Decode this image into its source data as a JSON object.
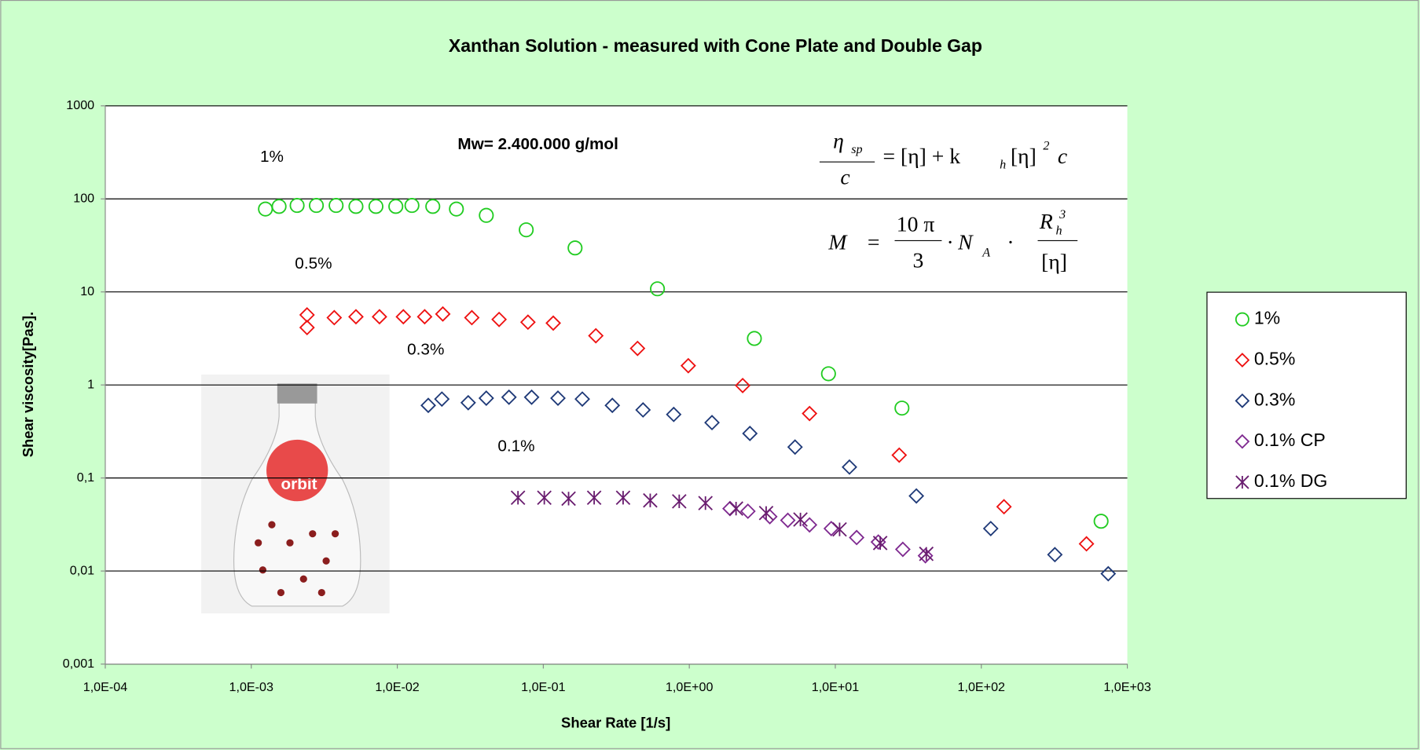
{
  "chart_data": {
    "type": "scatter",
    "title": "Xanthan Solution - measured with Cone Plate and Double Gap",
    "x_label": "Shear Rate [1/s]",
    "y_label": "Shear viscosity[Pas].",
    "xscale": "log",
    "yscale": "log",
    "grid": true,
    "legend": "right",
    "xlim": [
      0.0001,
      1000
    ],
    "ylim": [
      0.001,
      1000
    ],
    "xticks": [
      {
        "value": 0.0001,
        "label": "1,0E-04"
      },
      {
        "value": 0.001,
        "label": "1,0E-03"
      },
      {
        "value": 0.01,
        "label": "1,0E-02"
      },
      {
        "value": 0.1,
        "label": "1,0E-01"
      },
      {
        "value": 1,
        "label": "1,0E+00"
      },
      {
        "value": 10,
        "label": "1,0E+01"
      },
      {
        "value": 100,
        "label": "1,0E+02"
      },
      {
        "value": 1000,
        "label": "1,0E+03"
      }
    ],
    "yticks": [
      {
        "value": 0.001,
        "label": "0,001"
      },
      {
        "value": 0.01,
        "label": "0,01"
      },
      {
        "value": 0.1,
        "label": "0,1"
      },
      1,
      10,
      100,
      1000
    ],
    "annotations": [
      "1%",
      "0.5%",
      "0.3%",
      "0.1%",
      "Mw= 2.400.000 g/mol"
    ],
    "formulas": [
      [
        "η",
        "sp",
        "c",
        "= [η] + k",
        "h",
        "[η]",
        "2",
        "c"
      ],
      [
        "M",
        "=",
        "10 π",
        "3",
        "· N",
        "A",
        "·",
        "R",
        "h",
        "3",
        "[η]"
      ]
    ],
    "image_label": "orbit",
    "series": [
      {
        "name": "1%",
        "color": "#22cc22",
        "marker": "circle",
        "x": [
          0.00125,
          0.00155,
          0.00206,
          0.00279,
          0.00381,
          0.00521,
          0.00714,
          0.00977,
          0.0126,
          0.0175,
          0.0254,
          0.0407,
          0.0764,
          0.165,
          0.605,
          2.79,
          8.98,
          28.6,
          661
        ],
        "values": [
          77.8,
          83,
          85,
          85,
          85,
          83,
          83,
          83,
          85,
          83,
          77.8,
          66.5,
          46.5,
          29.7,
          10.8,
          3.16,
          1.32,
          0.564,
          0.0343
        ]
      },
      {
        "name": "0.5%",
        "color": "#ee1111",
        "marker": "diamond",
        "x": [
          0.00241,
          0.00241,
          0.0037,
          0.00521,
          0.00755,
          0.011,
          0.0154,
          0.0205,
          0.0324,
          0.0498,
          0.0785,
          0.117,
          0.229,
          0.442,
          0.984,
          2.32,
          6.66,
          27.4,
          143,
          525
        ],
        "values": [
          4.14,
          5.66,
          5.29,
          5.41,
          5.41,
          5.41,
          5.41,
          5.79,
          5.29,
          5.06,
          4.73,
          4.62,
          3.38,
          2.47,
          1.61,
          0.986,
          0.493,
          0.176,
          0.0491,
          0.0196
        ]
      },
      {
        "name": "0.3%",
        "color": "#1f3a78",
        "marker": "diamond",
        "x": [
          0.0163,
          0.0202,
          0.0306,
          0.0407,
          0.0582,
          0.0832,
          0.126,
          0.185,
          0.297,
          0.482,
          0.782,
          1.43,
          2.6,
          5.3,
          12.5,
          35.9,
          116,
          319,
          740
        ],
        "values": [
          0.603,
          0.705,
          0.644,
          0.721,
          0.738,
          0.738,
          0.721,
          0.705,
          0.603,
          0.539,
          0.482,
          0.394,
          0.301,
          0.215,
          0.131,
          0.0641,
          0.0286,
          0.015,
          0.00935
        ]
      },
      {
        "name": "0.1% CP",
        "color": "#7f2a90",
        "marker": "diamond",
        "x": [
          1.9,
          2.52,
          3.56,
          4.73,
          6.66,
          9.38,
          14,
          19.7,
          29,
          41.4
        ],
        "values": [
          0.0469,
          0.0439,
          0.0384,
          0.0351,
          0.0313,
          0.0286,
          0.0229,
          0.0205,
          0.0171,
          0.0146
        ]
      },
      {
        "name": "0.1% DG",
        "color": "#6a1e70",
        "marker": "star",
        "x": [
          0.0671,
          0.1016,
          0.149,
          0.223,
          0.352,
          0.54,
          0.853,
          1.29,
          2.09,
          3.36,
          5.77,
          10.7,
          20.3,
          42
        ],
        "values": [
          0.0614,
          0.0614,
          0.06,
          0.0614,
          0.0614,
          0.0574,
          0.0561,
          0.0537,
          0.0469,
          0.042,
          0.0358,
          0.028,
          0.02,
          0.0153
        ]
      }
    ]
  }
}
